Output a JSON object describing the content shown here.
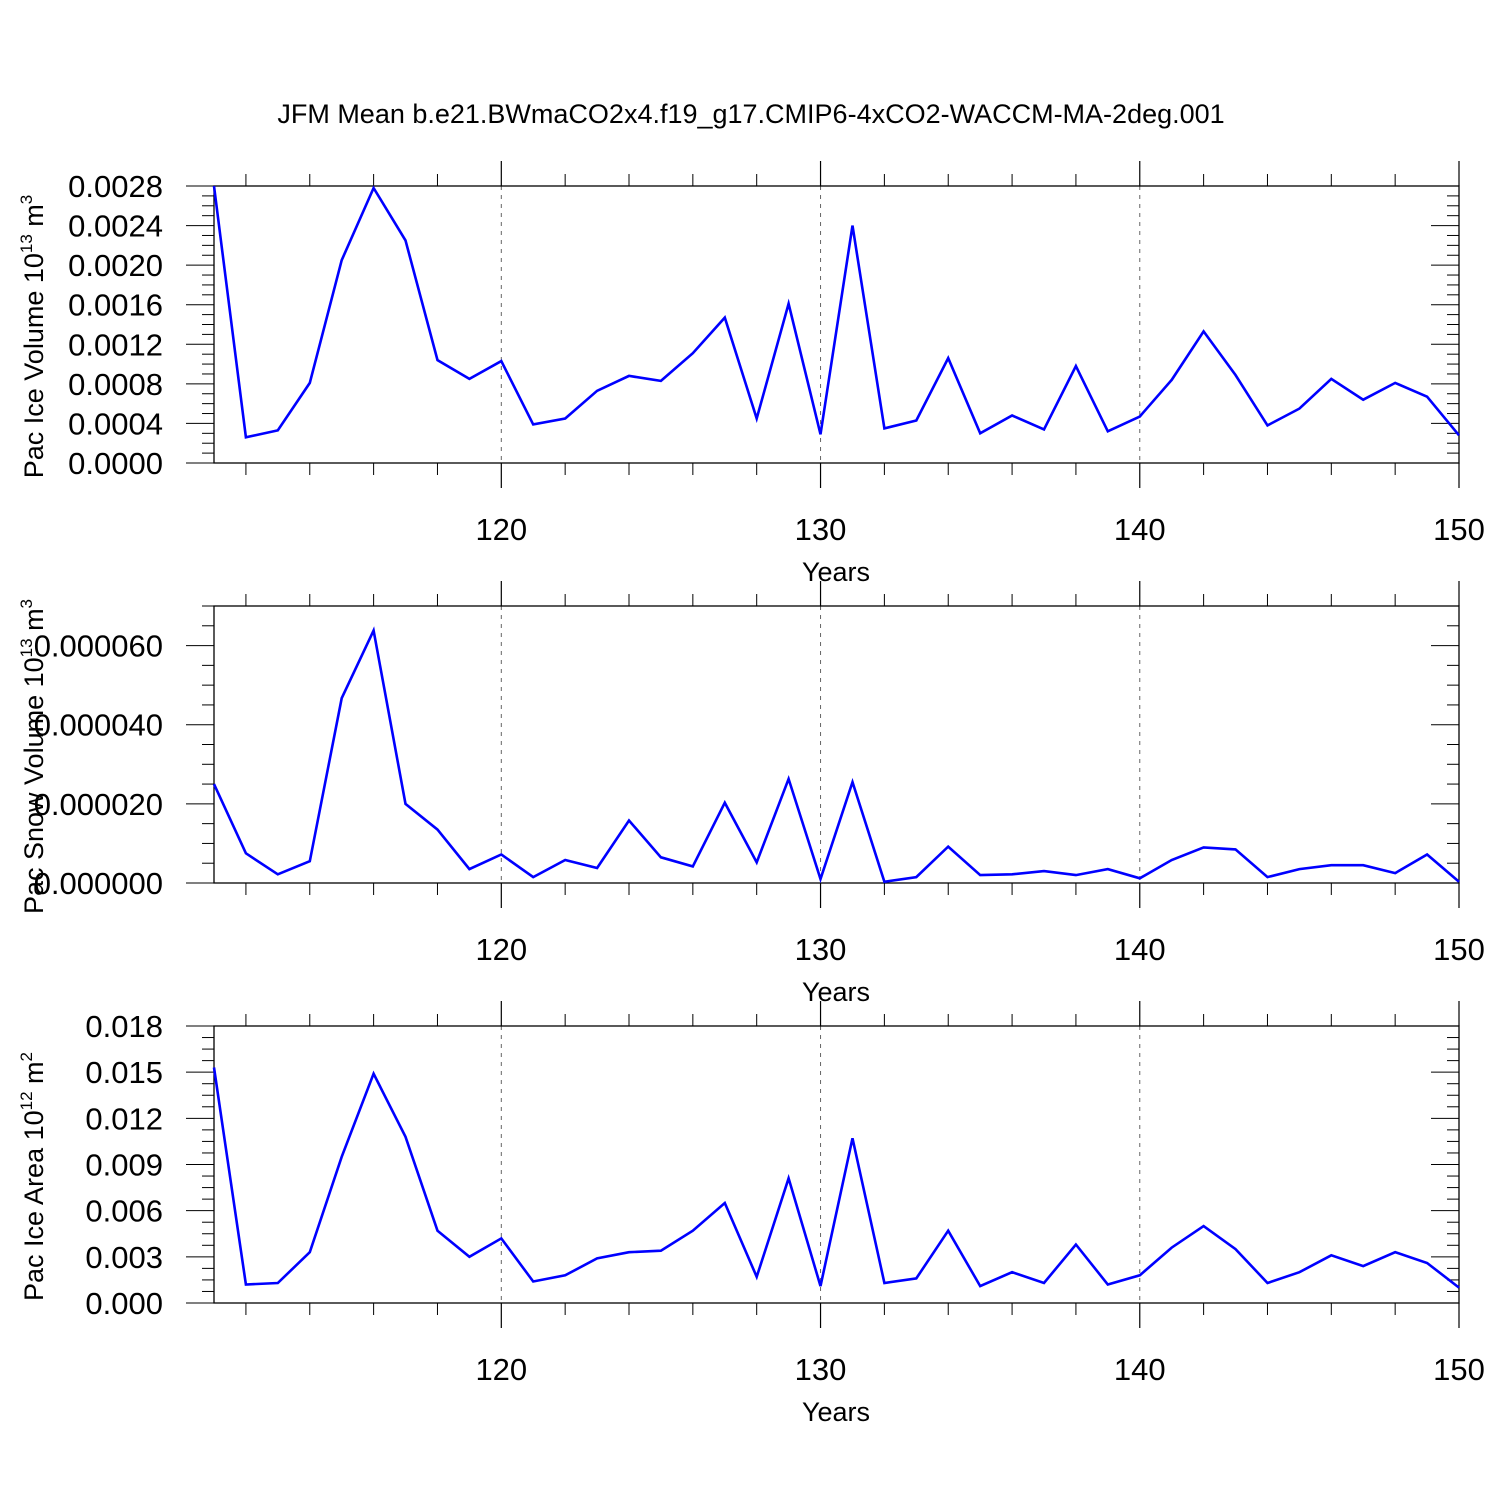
{
  "title": "JFM Mean b.e21.BWmaCO2x4.f19_g17.CMIP6-4xCO2-WACCM-MA-2deg.001",
  "line_color": "#0000ff",
  "chart_data": [
    {
      "type": "line",
      "xlabel": "Years",
      "ylabel_base": "Pac Ice Volume 10",
      "ylabel_exp": "13",
      "ylabel_unit": " m",
      "ylabel_unit_exp": "3",
      "xlim": [
        111,
        150
      ],
      "ylim": [
        0,
        0.0028
      ],
      "yticks": [
        "0.0000",
        "0.0004",
        "0.0008",
        "0.0012",
        "0.0016",
        "0.0020",
        "0.0024",
        "0.0028"
      ],
      "xticks": [
        "120",
        "130",
        "140",
        "150"
      ],
      "series": [
        {
          "x": [
            111,
            112,
            113,
            114,
            115,
            116,
            117,
            118,
            119,
            120,
            121,
            122,
            123,
            124,
            125,
            126,
            127,
            128,
            129,
            130,
            131,
            132,
            133,
            134,
            135,
            136,
            137,
            138,
            139,
            140,
            141,
            142,
            143,
            144,
            145,
            146,
            147,
            148,
            149,
            150
          ],
          "values": [
            0.0028,
            0.00026,
            0.00033,
            0.00081,
            0.00205,
            0.00278,
            0.00225,
            0.00104,
            0.00085,
            0.00103,
            0.00039,
            0.00045,
            0.00073,
            0.00088,
            0.00083,
            0.00111,
            0.00147,
            0.00045,
            0.00161,
            0.00029,
            0.0024,
            0.00035,
            0.00043,
            0.00106,
            0.0003,
            0.00048,
            0.00034,
            0.00098,
            0.00032,
            0.00047,
            0.00084,
            0.00133,
            0.00089,
            0.00038,
            0.00055,
            0.00085,
            0.00064,
            0.00081,
            0.00067,
            0.00028
          ]
        }
      ]
    },
    {
      "type": "line",
      "xlabel": "Years",
      "ylabel_base": "Pac Snow Volume 10",
      "ylabel_exp": "13",
      "ylabel_unit": " m",
      "ylabel_unit_exp": "3",
      "xlim": [
        111,
        150
      ],
      "ylim": [
        0,
        7e-05
      ],
      "yticks": [
        "0.000000",
        "0.000020",
        "0.000040",
        "0.000060"
      ],
      "xticks": [
        "120",
        "130",
        "140",
        "150"
      ],
      "series": [
        {
          "x": [
            111,
            112,
            113,
            114,
            115,
            116,
            117,
            118,
            119,
            120,
            121,
            122,
            123,
            124,
            125,
            126,
            127,
            128,
            129,
            130,
            131,
            132,
            133,
            134,
            135,
            136,
            137,
            138,
            139,
            140,
            141,
            142,
            143,
            144,
            145,
            146,
            147,
            148,
            149,
            150
          ],
          "values": [
            2.5e-05,
            7.5e-06,
            2.2e-06,
            5.5e-06,
            4.67e-05,
            6.38e-05,
            2e-05,
            1.35e-05,
            3.5e-06,
            7.2e-06,
            1.5e-06,
            5.8e-06,
            3.8e-06,
            1.58e-05,
            6.5e-06,
            4.2e-06,
            2.03e-05,
            5.2e-06,
            2.63e-05,
            1e-06,
            2.55e-05,
            3e-07,
            1.5e-06,
            9.2e-06,
            2e-06,
            2.2e-06,
            3e-06,
            2e-06,
            3.5e-06,
            1.2e-06,
            5.8e-06,
            9e-06,
            8.5e-06,
            1.5e-06,
            3.5e-06,
            4.5e-06,
            4.5e-06,
            2.5e-06,
            7.2e-06,
            3e-07
          ]
        }
      ]
    },
    {
      "type": "line",
      "xlabel": "Years",
      "ylabel_base": "Pac Ice Area 10",
      "ylabel_exp": "12",
      "ylabel_unit": " m",
      "ylabel_unit_exp": "2",
      "xlim": [
        111,
        150
      ],
      "ylim": [
        0,
        0.018
      ],
      "yticks": [
        "0.000",
        "0.003",
        "0.006",
        "0.009",
        "0.012",
        "0.015",
        "0.018"
      ],
      "xticks": [
        "120",
        "130",
        "140",
        "150"
      ],
      "series": [
        {
          "x": [
            111,
            112,
            113,
            114,
            115,
            116,
            117,
            118,
            119,
            120,
            121,
            122,
            123,
            124,
            125,
            126,
            127,
            128,
            129,
            130,
            131,
            132,
            133,
            134,
            135,
            136,
            137,
            138,
            139,
            140,
            141,
            142,
            143,
            144,
            145,
            146,
            147,
            148,
            149,
            150
          ],
          "values": [
            0.0153,
            0.0012,
            0.0013,
            0.0033,
            0.0095,
            0.0149,
            0.0108,
            0.0047,
            0.003,
            0.0042,
            0.0014,
            0.0018,
            0.0029,
            0.0033,
            0.0034,
            0.0047,
            0.0065,
            0.0017,
            0.0081,
            0.0011,
            0.0107,
            0.0013,
            0.0016,
            0.0047,
            0.0011,
            0.002,
            0.0013,
            0.0038,
            0.0012,
            0.0018,
            0.0036,
            0.005,
            0.0035,
            0.0013,
            0.002,
            0.0031,
            0.0024,
            0.0033,
            0.0026,
            0.001
          ]
        }
      ]
    }
  ]
}
